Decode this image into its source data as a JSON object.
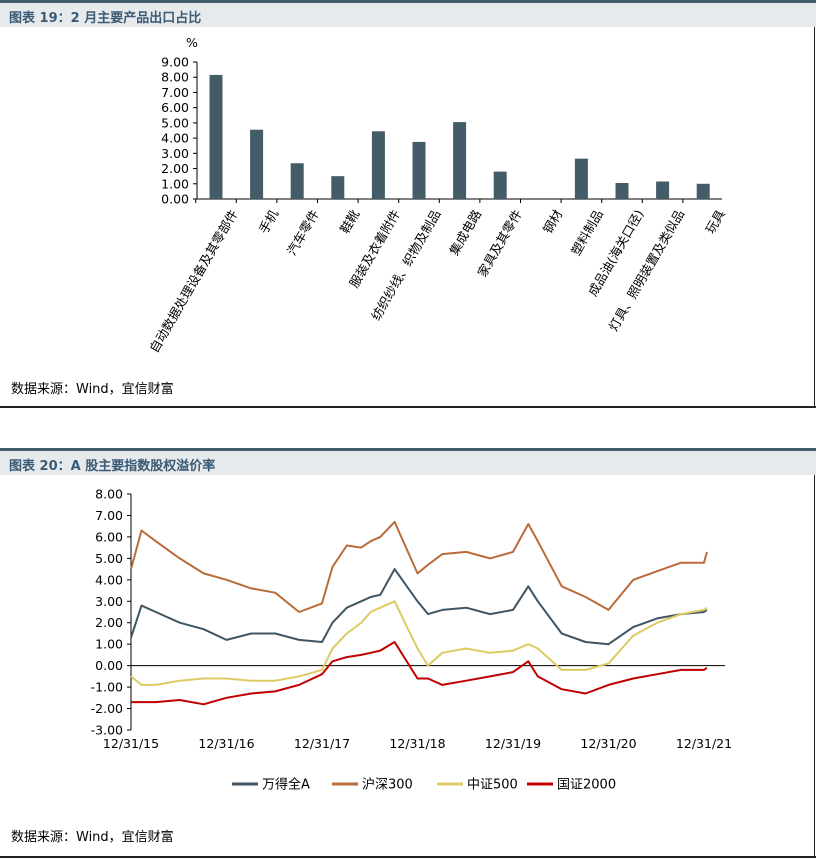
{
  "panels": {
    "chart19": {
      "title": "图表 19：2 月主要产品出口占比",
      "source": "数据来源：Wind，宜信财富"
    },
    "chart20": {
      "title": "图表 20：A 股主要指数股权溢价率",
      "source": "数据来源：Wind，宜信财富"
    }
  },
  "chart_data": [
    {
      "type": "bar",
      "title": "",
      "unit_label": "%",
      "categories": [
        "自动数据处理设备及其零部件",
        "手机",
        "汽车零件",
        "鞋靴",
        "服装及衣着附件",
        "纺织纱线、织物及制品",
        "集成电路",
        "家具及其零件",
        "钢材",
        "塑料制品",
        "成品油(海关口径)",
        "灯具、照明装置及类似品",
        "玩具"
      ],
      "values": [
        8.15,
        4.55,
        2.35,
        1.5,
        4.45,
        3.75,
        5.05,
        1.8,
        0.0,
        2.65,
        1.05,
        1.15,
        1.0
      ],
      "ylim": [
        0,
        9
      ],
      "yticks": [
        "0.00",
        "1.00",
        "2.00",
        "3.00",
        "4.00",
        "5.00",
        "6.00",
        "7.00",
        "8.00",
        "9.00"
      ],
      "bar_color": "#445c68",
      "grid": false
    },
    {
      "type": "line",
      "title": "",
      "xlabels": [
        "12/31/15",
        "12/31/16",
        "12/31/17",
        "12/31/18",
        "12/31/19",
        "12/31/20",
        "12/31/21"
      ],
      "ylim": [
        -3,
        8
      ],
      "yticks": [
        "-3.00",
        "-2.00",
        "-1.00",
        "0.00",
        "1.00",
        "2.00",
        "3.00",
        "4.00",
        "5.00",
        "6.00",
        "7.00",
        "8.00"
      ],
      "legend_position": "bottom",
      "grid": false,
      "x": [
        2015.99,
        2016.1,
        2016.25,
        2016.5,
        2016.75,
        2016.99,
        2017.25,
        2017.5,
        2017.75,
        2017.99,
        2018.1,
        2018.25,
        2018.4,
        2018.5,
        2018.6,
        2018.75,
        2018.99,
        2019.1,
        2019.25,
        2019.5,
        2019.75,
        2019.99,
        2020.15,
        2020.25,
        2020.5,
        2020.75,
        2020.99,
        2021.25,
        2021.5,
        2021.75,
        2021.99,
        2022.02
      ],
      "series": [
        {
          "name": "万得全A",
          "color": "#3f5563",
          "values": [
            1.3,
            2.8,
            2.5,
            2.0,
            1.7,
            1.2,
            1.5,
            1.5,
            1.2,
            1.1,
            2.0,
            2.7,
            3.0,
            3.2,
            3.3,
            4.5,
            3.0,
            2.4,
            2.6,
            2.7,
            2.4,
            2.6,
            3.7,
            3.0,
            1.5,
            1.1,
            1.0,
            1.8,
            2.2,
            2.4,
            2.5,
            2.6
          ]
        },
        {
          "name": "沪深300",
          "color": "#b96b3a",
          "values": [
            4.5,
            6.3,
            5.8,
            5.0,
            4.3,
            4.0,
            3.6,
            3.4,
            2.5,
            2.9,
            4.6,
            5.6,
            5.5,
            5.8,
            6.0,
            6.7,
            4.3,
            4.7,
            5.2,
            5.3,
            5.0,
            5.3,
            6.6,
            5.8,
            3.7,
            3.2,
            2.6,
            4.0,
            4.4,
            4.8,
            4.8,
            5.3
          ]
        },
        {
          "name": "中证500",
          "color": "#dccb62",
          "values": [
            -0.5,
            -0.9,
            -0.9,
            -0.7,
            -0.6,
            -0.6,
            -0.7,
            -0.7,
            -0.5,
            -0.2,
            0.8,
            1.5,
            2.0,
            2.5,
            2.7,
            3.0,
            0.8,
            0.0,
            0.6,
            0.8,
            0.6,
            0.7,
            1.0,
            0.8,
            -0.2,
            -0.2,
            0.1,
            1.4,
            2.0,
            2.4,
            2.6,
            2.7
          ]
        },
        {
          "name": "国证2000",
          "color": "#c00000",
          "values": [
            -1.7,
            -1.7,
            -1.7,
            -1.6,
            -1.8,
            -1.5,
            -1.3,
            -1.2,
            -0.9,
            -0.4,
            0.2,
            0.4,
            0.5,
            0.6,
            0.7,
            1.1,
            -0.6,
            -0.6,
            -0.9,
            -0.7,
            -0.5,
            -0.3,
            0.2,
            -0.5,
            -1.1,
            -1.3,
            -0.9,
            -0.6,
            -0.4,
            -0.2,
            -0.2,
            -0.1
          ]
        }
      ]
    }
  ]
}
